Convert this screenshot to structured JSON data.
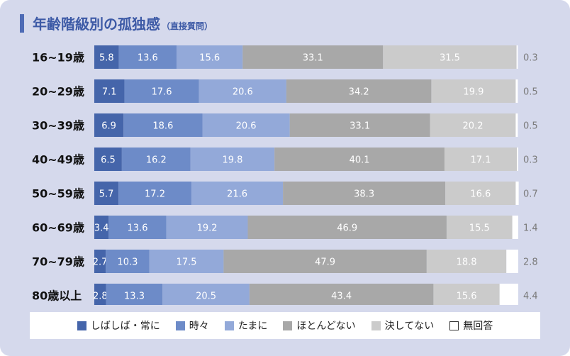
{
  "title": "年齢階級別の孤独感",
  "subtitle": "（直接質問）",
  "colors": {
    "background": "#d5d9ec",
    "accent": "#4e6bb5",
    "series": [
      "#4565aa",
      "#6d8bc8",
      "#93a9d9",
      "#a8a8a8",
      "#cbcbcb",
      "#ffffff"
    ],
    "label_dark": "#ffffff",
    "na_label": "#7a7a7a"
  },
  "chart_data": {
    "type": "bar",
    "orientation": "horizontal",
    "stacked": true,
    "xlim": [
      0,
      100
    ],
    "categories": [
      "16~19歳",
      "20~29歳",
      "30~39歳",
      "40~49歳",
      "50~59歳",
      "60~69歳",
      "70~79歳",
      "80歳以上"
    ],
    "series": [
      {
        "name": "しばしば・常に",
        "values": [
          5.8,
          7.1,
          6.9,
          6.5,
          5.7,
          3.4,
          2.7,
          2.8
        ]
      },
      {
        "name": "時々",
        "values": [
          13.6,
          17.6,
          18.6,
          16.2,
          17.2,
          13.6,
          10.3,
          13.3
        ]
      },
      {
        "name": "たまに",
        "values": [
          15.6,
          20.6,
          20.6,
          19.8,
          21.6,
          19.2,
          17.5,
          20.5
        ]
      },
      {
        "name": "ほとんどない",
        "values": [
          33.1,
          34.2,
          33.1,
          40.1,
          38.3,
          46.9,
          47.9,
          43.4
        ]
      },
      {
        "name": "決してない",
        "values": [
          31.5,
          19.9,
          20.2,
          17.1,
          16.6,
          15.5,
          18.8,
          15.6
        ]
      },
      {
        "name": "無回答",
        "values": [
          0.3,
          0.5,
          0.5,
          0.3,
          0.7,
          1.4,
          2.8,
          4.4
        ]
      }
    ],
    "legend_position": "bottom"
  }
}
